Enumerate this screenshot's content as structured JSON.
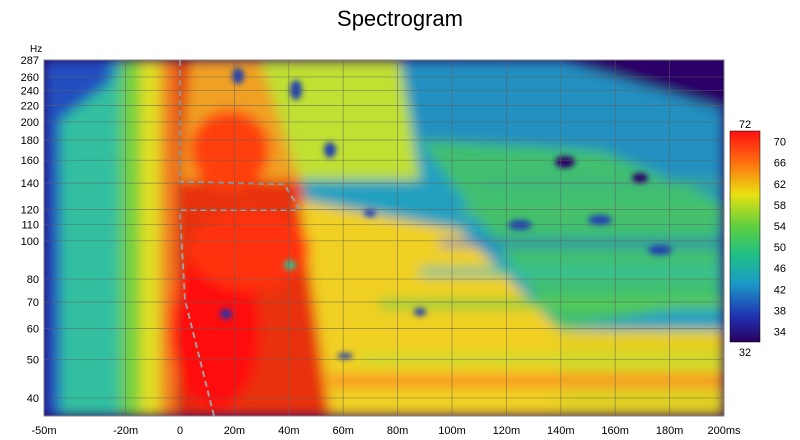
{
  "chart_data": {
    "type": "heatmap",
    "title": "Spectrogram",
    "ylabel": "Hz",
    "xlabel": "",
    "x_unit_ticks": [
      "-50m",
      "-20m",
      "0",
      "20m",
      "40m",
      "60m",
      "80m",
      "100m",
      "120m",
      "140m",
      "160m",
      "180m",
      "200ms"
    ],
    "x_tick_values_ms": [
      -50,
      -20,
      0,
      20,
      40,
      60,
      80,
      100,
      120,
      140,
      160,
      180,
      200
    ],
    "y_tick_labels": [
      "287",
      "260",
      "240",
      "220",
      "200",
      "180",
      "160",
      "140",
      "120",
      "110",
      "100",
      "80",
      "70",
      "60",
      "50",
      "40"
    ],
    "y_tick_values_hz": [
      287,
      260,
      240,
      220,
      200,
      180,
      160,
      140,
      120,
      110,
      100,
      80,
      70,
      60,
      50,
      40
    ],
    "xlim_ms": [
      -50,
      200
    ],
    "ylim_hz": [
      36,
      287
    ],
    "y_scale": "log",
    "colorbar": {
      "max_label": "72",
      "min_label": "32",
      "tick_labels": [
        "70",
        "66",
        "62",
        "58",
        "54",
        "50",
        "46",
        "42",
        "38",
        "34"
      ],
      "tick_values": [
        70,
        66,
        62,
        58,
        54,
        50,
        46,
        42,
        38,
        34
      ],
      "range": [
        32,
        72
      ]
    },
    "grid": true,
    "colors": {
      "high": "#e00000",
      "mid_high": "#ffe000",
      "mid": "#60d040",
      "mid_low": "#20b0b0",
      "low": "#2040c0",
      "floor": "#300070"
    }
  }
}
